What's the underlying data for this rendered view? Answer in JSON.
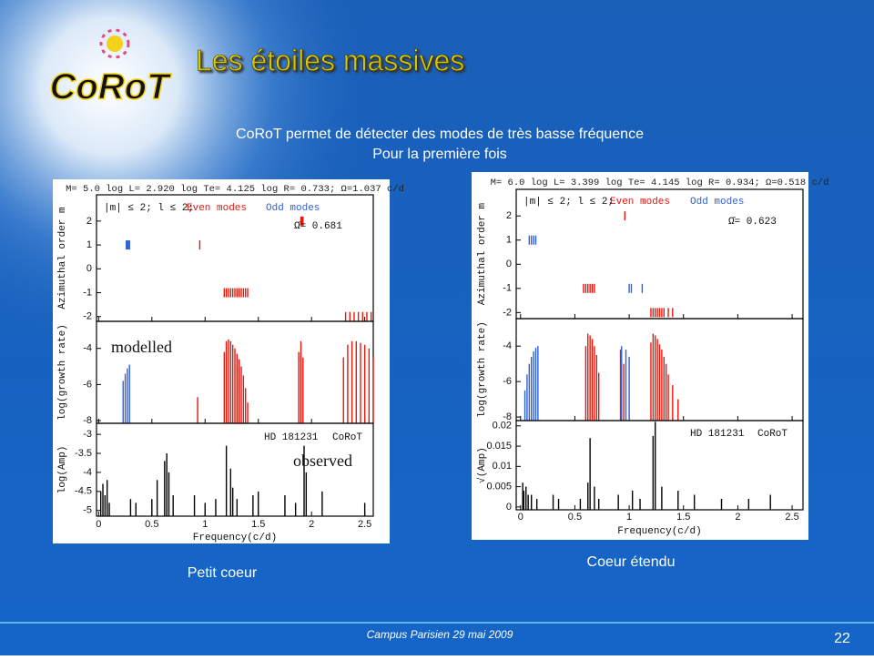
{
  "header": {
    "title": "Les étoiles massives",
    "logo": "CoRoT"
  },
  "subtitle": [
    "CoRoT permet de détecter des modes de très basse fréquence",
    "Pour la première fois"
  ],
  "figures": [
    {
      "params": "M= 5.0  log L= 2.920  log Te= 4.125  log R= 0.733;  Ω=1.037 c/d",
      "selection": "|m| ≤ 2; l ≤ 2;",
      "omega": "Ω̄= 0.681",
      "xlabel": "Frequency(c/d)",
      "xlim": [
        -0.02,
        2.58
      ],
      "xticks": [
        0,
        0.5,
        1,
        1.5,
        2,
        2.5
      ],
      "caption": "Petit coeur",
      "panels": [
        {
          "ylabel": "Azimuthal order m",
          "ylim": [
            -2.2,
            3.1
          ],
          "yticks": [
            2,
            1,
            0,
            -1,
            -2
          ],
          "series": [
            {
              "name": "Even modes",
              "color": "#e8170c",
              "x": [
                0.95,
                1.18,
                1.2,
                1.22,
                1.24,
                1.26,
                1.28,
                1.3,
                1.32,
                1.34,
                1.36,
                1.38,
                1.4,
                1.9,
                1.91,
                1.92,
                2.32,
                2.36,
                2.4,
                2.44,
                2.48,
                2.52,
                2.56
              ],
              "y": [
                1,
                -1,
                -1,
                -1,
                -1,
                -1,
                -1,
                -1,
                -1,
                -1,
                -1,
                -1,
                -1,
                2,
                2,
                2,
                -2,
                -2,
                -2,
                -2,
                -2,
                -2,
                -2
              ]
            },
            {
              "name": "Odd modes",
              "color": "#3060d8",
              "x": [
                0.26,
                0.27,
                0.28,
                0.29
              ],
              "y": [
                1,
                1,
                1,
                1
              ]
            }
          ]
        },
        {
          "ylabel": "log(growth rate)",
          "ylim": [
            -8.15,
            -2.5
          ],
          "yticks": [
            -4,
            -6,
            -8
          ],
          "notes": [
            "modelled"
          ],
          "series": [
            {
              "color": "#e8170c",
              "x": [
                0.93,
                1.18,
                1.2,
                1.22,
                1.24,
                1.26,
                1.28,
                1.3,
                1.32,
                1.34,
                1.36,
                1.38,
                1.4,
                1.88,
                1.9,
                1.92,
                2.3,
                2.34,
                2.38,
                2.42,
                2.46,
                2.5,
                2.54,
                2.58
              ],
              "y": [
                -6.7,
                -4.2,
                -3.6,
                -3.5,
                -3.6,
                -3.8,
                -4,
                -4.3,
                -4.6,
                -5,
                -5.5,
                -6.2,
                -7,
                -4.2,
                -3.6,
                -4.5,
                -4.5,
                -3.8,
                -3.6,
                -3.6,
                -3.7,
                -3.8,
                -4,
                -4.5
              ]
            },
            {
              "color": "#3060d8",
              "x": [
                0.23,
                0.25,
                0.27,
                0.29
              ],
              "y": [
                -5.8,
                -5.4,
                -5.1,
                -4.9
              ]
            }
          ]
        },
        {
          "ylabel": "log(Amp)",
          "ylim": [
            -5.15,
            -2.71
          ],
          "yticks": [
            -3,
            -3.5,
            -4,
            -4.5,
            -5
          ],
          "notes": [
            "HD 181231",
            "CoRoT",
            "observed"
          ],
          "series": [
            {
              "color": "#000000",
              "x": [
                0.02,
                0.04,
                0.06,
                0.08,
                0.1,
                0.3,
                0.35,
                0.5,
                0.55,
                0.62,
                0.64,
                0.66,
                0.7,
                0.9,
                1.0,
                1.1,
                1.2,
                1.24,
                1.26,
                1.3,
                1.45,
                1.5,
                1.75,
                1.85,
                1.93,
                1.95,
                2.1,
                2.5
              ],
              "y": [
                -4.5,
                -4.3,
                -4.6,
                -4.2,
                -4.8,
                -4.7,
                -4.8,
                -4.7,
                -4.2,
                -3.7,
                -3.5,
                -4.0,
                -4.6,
                -4.6,
                -4.8,
                -4.7,
                -3.3,
                -3.9,
                -4.4,
                -4.7,
                -4.6,
                -4.5,
                -4.6,
                -4.8,
                -3.3,
                -4.0,
                -4.5,
                -4.8
              ]
            }
          ]
        }
      ]
    },
    {
      "params": "M= 6.0  log L= 3.399  log Te= 4.145  log R= 0.934;  Ω=0.518 c/d",
      "selection": "|m| ≤ 2; l ≤ 2;",
      "omega": "Ω̄= 0.623",
      "xlabel": "Frequency(c/d)",
      "xlim": [
        -0.04,
        2.6
      ],
      "xticks": [
        0,
        0.5,
        1,
        1.5,
        2,
        2.5
      ],
      "caption": "Coeur étendu",
      "panels": [
        {
          "ylabel": "Azimuthal order m",
          "ylim": [
            -2.25,
            3.1
          ],
          "yticks": [
            2,
            1,
            0,
            -1,
            -2
          ],
          "series": [
            {
              "name": "Even modes",
              "color": "#e8170c",
              "x": [
                0.58,
                0.6,
                0.62,
                0.64,
                0.66,
                0.68,
                0.96,
                1.2,
                1.22,
                1.24,
                1.26,
                1.28,
                1.3,
                1.32,
                1.36,
                1.4
              ],
              "y": [
                -1,
                -1,
                -1,
                -1,
                -1,
                -1,
                2,
                -2,
                -2,
                -2,
                -2,
                -2,
                -2,
                -2,
                -2,
                -2
              ]
            },
            {
              "name": "Odd modes",
              "color": "#3060d8",
              "x": [
                0.08,
                0.1,
                0.12,
                0.14,
                1.0,
                1.02,
                1.12
              ],
              "y": [
                1,
                1,
                1,
                1,
                -1,
                -1,
                -1
              ]
            }
          ]
        },
        {
          "ylabel": "log(growth rate)",
          "ylim": [
            -8.2,
            -2.45
          ],
          "yticks": [
            -4,
            -6,
            -8
          ],
          "series": [
            {
              "color": "#e8170c",
              "x": [
                0.6,
                0.62,
                0.64,
                0.66,
                0.68,
                0.7,
                0.72,
                0.92,
                0.95,
                1.2,
                1.22,
                1.24,
                1.26,
                1.28,
                1.3,
                1.32,
                1.34,
                1.36,
                1.4,
                1.45
              ],
              "y": [
                -4,
                -3.3,
                -3.4,
                -3.6,
                -4,
                -4.5,
                -5.5,
                -4.2,
                -5,
                -3.8,
                -3.3,
                -3.4,
                -3.6,
                -3.9,
                -4.2,
                -4.6,
                -5,
                -5.6,
                -6.2,
                -7
              ]
            },
            {
              "color": "#3060d8",
              "x": [
                0.04,
                0.06,
                0.08,
                0.1,
                0.12,
                0.14,
                0.16,
                0.93,
                0.97,
                1.0
              ],
              "y": [
                -6.5,
                -5.6,
                -5.0,
                -4.6,
                -4.3,
                -4.1,
                -4.0,
                -4.0,
                -4.2,
                -4.6
              ]
            }
          ]
        },
        {
          "ylabel": "√(Amp)",
          "ylim": [
            -0.0007,
            0.0213
          ],
          "yticks": [
            0.02,
            0.015,
            0.01,
            0.005,
            0
          ],
          "notes": [
            "HD 181231",
            "CoRoT"
          ],
          "series": [
            {
              "color": "#000000",
              "x": [
                0.02,
                0.03,
                0.05,
                0.07,
                0.1,
                0.15,
                0.3,
                0.35,
                0.55,
                0.62,
                0.64,
                0.68,
                0.72,
                0.9,
                1.03,
                1.1,
                1.22,
                1.24,
                1.3,
                1.45,
                1.6,
                1.85,
                2.1,
                2.3
              ],
              "y": [
                0.006,
                0.004,
                0.005,
                0.003,
                0.003,
                0.002,
                0.003,
                0.002,
                0.002,
                0.006,
                0.017,
                0.005,
                0.002,
                0.003,
                0.004,
                0.002,
                0.0175,
                0.021,
                0.005,
                0.004,
                0.003,
                0.002,
                0.002,
                0.003
              ]
            }
          ]
        }
      ]
    }
  ],
  "footer": {
    "text": "Campus Parisien 29 mai 2009",
    "page": "22"
  }
}
